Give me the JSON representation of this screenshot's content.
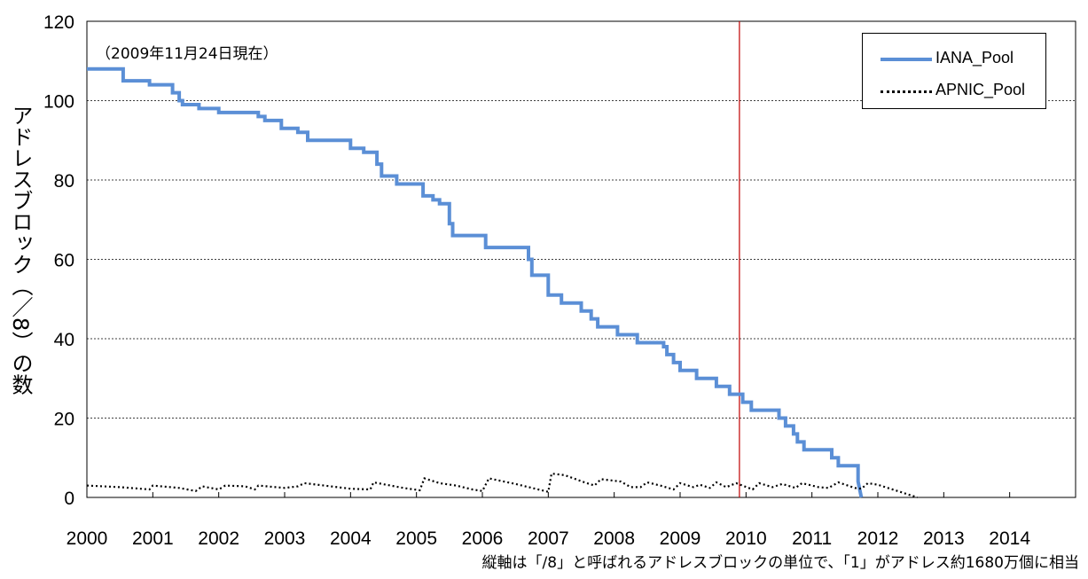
{
  "chart_data": {
    "type": "line",
    "title": "",
    "ylabel": "アドレスブロック（／8）の数",
    "xlabel": "",
    "annotation": "（2009年11月24日現在）",
    "footnote": "縦軸は「/8」と呼ばれるアドレスブロックの単位で、「1」がアドレス約1680万個に相当",
    "xlim": [
      2000,
      2015
    ],
    "ylim": [
      0,
      120
    ],
    "x_ticks": [
      "2000",
      "2001",
      "2002",
      "2003",
      "2004",
      "2005",
      "2006",
      "2007",
      "2008",
      "2009",
      "2010",
      "2011",
      "2012",
      "2013",
      "2014"
    ],
    "y_ticks": [
      "0",
      "20",
      "40",
      "60",
      "80",
      "100",
      "120"
    ],
    "grid": "horizontal-dashed",
    "legend_position": "top-right",
    "reference_line": {
      "x": 2009.9,
      "color": "#c00000"
    },
    "series": [
      {
        "name": "IANA_Pool",
        "color": "#5b8fd6",
        "style": "step",
        "points": [
          [
            2000.0,
            108
          ],
          [
            2000.55,
            108
          ],
          [
            2000.55,
            105
          ],
          [
            2000.95,
            105
          ],
          [
            2000.95,
            104
          ],
          [
            2001.3,
            104
          ],
          [
            2001.3,
            102
          ],
          [
            2001.4,
            102
          ],
          [
            2001.4,
            100
          ],
          [
            2001.45,
            100
          ],
          [
            2001.45,
            99
          ],
          [
            2001.7,
            99
          ],
          [
            2001.7,
            98
          ],
          [
            2002.0,
            98
          ],
          [
            2002.0,
            97
          ],
          [
            2002.6,
            97
          ],
          [
            2002.6,
            96
          ],
          [
            2002.7,
            96
          ],
          [
            2002.7,
            95
          ],
          [
            2002.95,
            95
          ],
          [
            2002.95,
            93
          ],
          [
            2003.2,
            93
          ],
          [
            2003.2,
            92
          ],
          [
            2003.35,
            92
          ],
          [
            2003.35,
            90
          ],
          [
            2004.0,
            90
          ],
          [
            2004.0,
            88
          ],
          [
            2004.2,
            88
          ],
          [
            2004.2,
            87
          ],
          [
            2004.4,
            87
          ],
          [
            2004.4,
            84
          ],
          [
            2004.47,
            84
          ],
          [
            2004.47,
            81
          ],
          [
            2004.7,
            81
          ],
          [
            2004.7,
            79
          ],
          [
            2005.1,
            79
          ],
          [
            2005.1,
            76
          ],
          [
            2005.25,
            76
          ],
          [
            2005.25,
            75
          ],
          [
            2005.35,
            75
          ],
          [
            2005.35,
            74
          ],
          [
            2005.5,
            74
          ],
          [
            2005.5,
            69
          ],
          [
            2005.55,
            69
          ],
          [
            2005.55,
            66
          ],
          [
            2006.05,
            66
          ],
          [
            2006.05,
            63
          ],
          [
            2006.7,
            63
          ],
          [
            2006.7,
            60
          ],
          [
            2006.75,
            60
          ],
          [
            2006.75,
            56
          ],
          [
            2007.0,
            56
          ],
          [
            2007.0,
            51
          ],
          [
            2007.2,
            51
          ],
          [
            2007.2,
            49
          ],
          [
            2007.5,
            49
          ],
          [
            2007.5,
            47
          ],
          [
            2007.65,
            47
          ],
          [
            2007.65,
            45
          ],
          [
            2007.75,
            45
          ],
          [
            2007.75,
            43
          ],
          [
            2008.05,
            43
          ],
          [
            2008.05,
            41
          ],
          [
            2008.35,
            41
          ],
          [
            2008.35,
            39
          ],
          [
            2008.75,
            39
          ],
          [
            2008.75,
            38
          ],
          [
            2008.8,
            38
          ],
          [
            2008.8,
            36
          ],
          [
            2008.9,
            36
          ],
          [
            2008.9,
            34
          ],
          [
            2009.0,
            34
          ],
          [
            2009.0,
            32
          ],
          [
            2009.25,
            32
          ],
          [
            2009.25,
            30
          ],
          [
            2009.55,
            30
          ],
          [
            2009.55,
            28
          ],
          [
            2009.75,
            28
          ],
          [
            2009.75,
            26
          ],
          [
            2009.95,
            26
          ],
          [
            2009.95,
            24
          ],
          [
            2010.08,
            24
          ],
          [
            2010.08,
            22
          ],
          [
            2010.5,
            22
          ],
          [
            2010.5,
            20
          ],
          [
            2010.6,
            20
          ],
          [
            2010.6,
            18
          ],
          [
            2010.72,
            18
          ],
          [
            2010.72,
            16
          ],
          [
            2010.78,
            16
          ],
          [
            2010.78,
            14
          ],
          [
            2010.88,
            14
          ],
          [
            2010.88,
            12
          ],
          [
            2011.3,
            12
          ],
          [
            2011.3,
            10
          ],
          [
            2011.4,
            10
          ],
          [
            2011.4,
            8
          ],
          [
            2011.7,
            8
          ],
          [
            2011.7,
            4
          ],
          [
            2011.75,
            0
          ]
        ]
      },
      {
        "name": "APNIC_Pool",
        "color": "#000000",
        "style": "dotted",
        "points": [
          [
            2000.0,
            3.0
          ],
          [
            2000.5,
            2.6
          ],
          [
            2000.95,
            2.0
          ],
          [
            2001.0,
            3.0
          ],
          [
            2001.4,
            2.4
          ],
          [
            2001.65,
            1.6
          ],
          [
            2001.75,
            2.8
          ],
          [
            2002.0,
            2.0
          ],
          [
            2002.1,
            3.0
          ],
          [
            2002.4,
            2.8
          ],
          [
            2002.55,
            2.0
          ],
          [
            2002.6,
            3.0
          ],
          [
            2003.0,
            2.4
          ],
          [
            2003.2,
            2.8
          ],
          [
            2003.3,
            3.6
          ],
          [
            2003.7,
            2.8
          ],
          [
            2004.0,
            2.2
          ],
          [
            2004.3,
            2.0
          ],
          [
            2004.35,
            3.8
          ],
          [
            2004.8,
            2.4
          ],
          [
            2005.05,
            1.8
          ],
          [
            2005.12,
            4.8
          ],
          [
            2005.35,
            3.6
          ],
          [
            2005.6,
            3.0
          ],
          [
            2005.85,
            2.0
          ],
          [
            2006.0,
            1.6
          ],
          [
            2006.1,
            4.8
          ],
          [
            2006.5,
            3.4
          ],
          [
            2006.95,
            1.6
          ],
          [
            2007.0,
            1.4
          ],
          [
            2007.05,
            6.0
          ],
          [
            2007.25,
            5.6
          ],
          [
            2007.55,
            3.8
          ],
          [
            2007.7,
            3.0
          ],
          [
            2007.8,
            4.6
          ],
          [
            2008.1,
            4.0
          ],
          [
            2008.25,
            2.6
          ],
          [
            2008.4,
            2.6
          ],
          [
            2008.5,
            3.8
          ],
          [
            2008.7,
            3.0
          ],
          [
            2008.9,
            2.0
          ],
          [
            2009.0,
            3.6
          ],
          [
            2009.2,
            2.6
          ],
          [
            2009.3,
            3.2
          ],
          [
            2009.45,
            2.4
          ],
          [
            2009.55,
            3.8
          ],
          [
            2009.7,
            2.6
          ],
          [
            2009.85,
            3.6
          ],
          [
            2010.1,
            2.0
          ],
          [
            2010.2,
            3.6
          ],
          [
            2010.4,
            2.6
          ],
          [
            2010.55,
            3.4
          ],
          [
            2010.75,
            2.4
          ],
          [
            2010.85,
            3.6
          ],
          [
            2011.1,
            2.6
          ],
          [
            2011.25,
            2.4
          ],
          [
            2011.4,
            3.8
          ],
          [
            2011.65,
            2.4
          ],
          [
            2011.75,
            2.2
          ],
          [
            2011.85,
            3.6
          ],
          [
            2012.0,
            3.2
          ],
          [
            2012.3,
            1.6
          ],
          [
            2012.6,
            0
          ]
        ]
      }
    ]
  }
}
